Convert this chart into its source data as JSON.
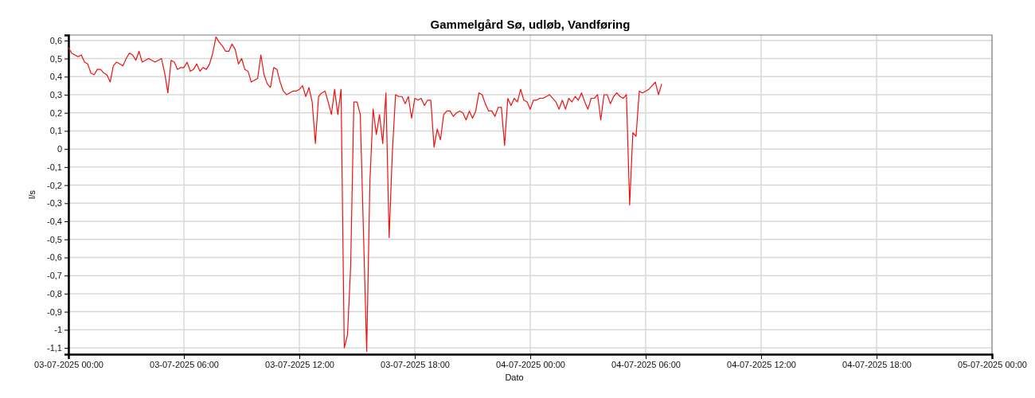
{
  "chart_data": {
    "type": "line",
    "title": "Gammelgård Sø, udløb, Vandføring",
    "xlabel": "Dato",
    "ylabel": "l/s",
    "x": [
      "2025-07-03T00:00",
      "2025-07-03T00:10",
      "2025-07-03T00:20",
      "2025-07-03T00:30",
      "2025-07-03T00:40",
      "2025-07-03T00:50",
      "2025-07-03T01:00",
      "2025-07-03T01:10",
      "2025-07-03T01:20",
      "2025-07-03T01:30",
      "2025-07-03T01:40",
      "2025-07-03T01:50",
      "2025-07-03T02:00",
      "2025-07-03T02:10",
      "2025-07-03T02:20",
      "2025-07-03T02:30",
      "2025-07-03T02:40",
      "2025-07-03T02:50",
      "2025-07-03T03:00",
      "2025-07-03T03:10",
      "2025-07-03T03:20",
      "2025-07-03T03:30",
      "2025-07-03T03:40",
      "2025-07-03T03:50",
      "2025-07-03T04:00",
      "2025-07-03T04:10",
      "2025-07-03T04:20",
      "2025-07-03T04:30",
      "2025-07-03T04:40",
      "2025-07-03T04:50",
      "2025-07-03T05:00",
      "2025-07-03T05:10",
      "2025-07-03T05:20",
      "2025-07-03T05:30",
      "2025-07-03T05:40",
      "2025-07-03T05:50",
      "2025-07-03T06:00",
      "2025-07-03T06:10",
      "2025-07-03T06:20",
      "2025-07-03T06:30",
      "2025-07-03T06:40",
      "2025-07-03T06:50",
      "2025-07-03T07:00",
      "2025-07-03T07:10",
      "2025-07-03T07:20",
      "2025-07-03T07:30",
      "2025-07-03T07:40",
      "2025-07-03T07:50",
      "2025-07-03T08:00",
      "2025-07-03T08:10",
      "2025-07-03T08:20",
      "2025-07-03T08:30",
      "2025-07-03T08:40",
      "2025-07-03T08:50",
      "2025-07-03T09:00",
      "2025-07-03T09:10",
      "2025-07-03T09:20",
      "2025-07-03T09:30",
      "2025-07-03T09:40",
      "2025-07-03T09:50",
      "2025-07-03T10:00",
      "2025-07-03T10:10",
      "2025-07-03T10:20",
      "2025-07-03T10:30",
      "2025-07-03T10:40",
      "2025-07-03T10:50",
      "2025-07-03T11:00",
      "2025-07-03T11:10",
      "2025-07-03T11:20",
      "2025-07-03T11:30",
      "2025-07-03T11:40",
      "2025-07-03T11:50",
      "2025-07-03T12:00",
      "2025-07-03T12:10",
      "2025-07-03T12:20",
      "2025-07-03T12:30",
      "2025-07-03T12:40",
      "2025-07-03T12:50",
      "2025-07-03T13:00",
      "2025-07-03T13:10",
      "2025-07-03T13:20",
      "2025-07-03T13:30",
      "2025-07-03T13:40",
      "2025-07-03T13:50",
      "2025-07-03T14:00",
      "2025-07-03T14:10",
      "2025-07-03T14:20",
      "2025-07-03T14:30",
      "2025-07-03T14:40",
      "2025-07-03T14:50",
      "2025-07-03T15:00",
      "2025-07-03T15:10",
      "2025-07-03T15:30",
      "2025-07-03T15:40",
      "2025-07-03T15:50",
      "2025-07-03T16:00",
      "2025-07-03T16:10",
      "2025-07-03T16:20",
      "2025-07-03T16:30",
      "2025-07-03T16:40",
      "2025-07-03T16:50",
      "2025-07-03T17:00",
      "2025-07-03T17:10",
      "2025-07-03T17:20",
      "2025-07-03T17:30",
      "2025-07-03T17:40",
      "2025-07-03T17:50",
      "2025-07-03T18:00",
      "2025-07-03T18:10",
      "2025-07-03T18:20",
      "2025-07-03T18:30",
      "2025-07-03T18:40",
      "2025-07-03T18:50",
      "2025-07-03T19:00",
      "2025-07-03T19:10",
      "2025-07-03T19:20",
      "2025-07-03T19:30",
      "2025-07-03T19:40",
      "2025-07-03T19:50",
      "2025-07-03T20:00",
      "2025-07-03T20:10",
      "2025-07-03T20:20",
      "2025-07-03T20:30",
      "2025-07-03T20:40",
      "2025-07-03T20:50",
      "2025-07-03T21:00",
      "2025-07-03T21:10",
      "2025-07-03T21:20",
      "2025-07-03T21:30",
      "2025-07-03T21:40",
      "2025-07-03T21:50",
      "2025-07-03T22:00",
      "2025-07-03T22:10",
      "2025-07-03T22:20",
      "2025-07-03T22:30",
      "2025-07-03T22:40",
      "2025-07-03T22:50",
      "2025-07-03T23:00",
      "2025-07-03T23:10",
      "2025-07-03T23:20",
      "2025-07-03T23:30",
      "2025-07-03T23:40",
      "2025-07-03T23:50",
      "2025-07-04T00:00",
      "2025-07-04T00:10",
      "2025-07-04T00:20",
      "2025-07-04T00:30",
      "2025-07-04T00:40",
      "2025-07-04T00:50",
      "2025-07-04T01:00",
      "2025-07-04T01:20",
      "2025-07-04T01:30",
      "2025-07-04T01:40",
      "2025-07-04T01:50",
      "2025-07-04T02:00",
      "2025-07-04T02:10",
      "2025-07-04T02:20",
      "2025-07-04T02:30",
      "2025-07-04T02:40",
      "2025-07-04T02:50",
      "2025-07-04T03:00",
      "2025-07-04T03:10",
      "2025-07-04T03:20",
      "2025-07-04T03:30",
      "2025-07-04T03:40",
      "2025-07-04T03:50",
      "2025-07-04T04:00",
      "2025-07-04T04:10",
      "2025-07-04T04:20",
      "2025-07-04T04:30",
      "2025-07-04T04:40",
      "2025-07-04T04:50",
      "2025-07-04T05:00",
      "2025-07-04T05:10",
      "2025-07-04T05:20",
      "2025-07-04T05:30",
      "2025-07-04T05:40",
      "2025-07-04T05:50",
      "2025-07-04T06:00",
      "2025-07-04T06:10",
      "2025-07-04T06:20",
      "2025-07-04T06:30",
      "2025-07-04T06:40",
      "2025-07-04T06:50"
    ],
    "series": [
      {
        "color": "#ee1111",
        "values": [
          0.56,
          0.53,
          0.52,
          0.51,
          0.52,
          0.48,
          0.47,
          0.42,
          0.41,
          0.44,
          0.44,
          0.42,
          0.41,
          0.37,
          0.46,
          0.48,
          0.47,
          0.46,
          0.5,
          0.53,
          0.52,
          0.49,
          0.54,
          0.48,
          0.49,
          0.5,
          0.49,
          0.48,
          0.49,
          0.5,
          0.42,
          0.31,
          0.49,
          0.48,
          0.44,
          0.45,
          0.45,
          0.48,
          0.43,
          0.44,
          0.47,
          0.43,
          0.45,
          0.44,
          0.47,
          0.53,
          0.62,
          0.59,
          0.57,
          0.54,
          0.54,
          0.58,
          0.55,
          0.47,
          0.5,
          0.44,
          0.43,
          0.37,
          0.38,
          0.39,
          0.52,
          0.41,
          0.36,
          0.34,
          0.45,
          0.44,
          0.37,
          0.32,
          0.3,
          0.31,
          0.32,
          0.32,
          0.33,
          0.35,
          0.29,
          0.34,
          0.26,
          0.03,
          0.29,
          0.31,
          0.32,
          0.26,
          0.19,
          0.33,
          0.19,
          0.33,
          -1.1,
          -1.03,
          -0.65,
          0.26,
          0.26,
          0.19,
          -1.12,
          -0.18,
          0.22,
          0.08,
          0.19,
          0.03,
          0.31,
          -0.49,
          -0.02,
          0.3,
          0.29,
          0.29,
          0.25,
          0.29,
          0.17,
          0.28,
          0.27,
          0.28,
          0.24,
          0.27,
          0.27,
          0.01,
          0.11,
          0.05,
          0.19,
          0.21,
          0.21,
          0.18,
          0.2,
          0.21,
          0.2,
          0.16,
          0.21,
          0.17,
          0.21,
          0.31,
          0.3,
          0.25,
          0.21,
          0.21,
          0.18,
          0.23,
          0.23,
          0.02,
          0.28,
          0.24,
          0.28,
          0.26,
          0.33,
          0.27,
          0.26,
          0.22,
          0.27,
          0.27,
          0.28,
          0.28,
          0.29,
          0.3,
          0.26,
          0.22,
          0.27,
          0.22,
          0.28,
          0.26,
          0.29,
          0.27,
          0.31,
          0.26,
          0.22,
          0.28,
          0.28,
          0.3,
          0.16,
          0.3,
          0.3,
          0.25,
          0.29,
          0.31,
          0.29,
          0.28,
          0.3,
          -0.31,
          0.09,
          0.07,
          0.32,
          0.31,
          0.32,
          0.33,
          0.35,
          0.37,
          0.3,
          0.36
        ]
      }
    ],
    "xlim": [
      "2025-07-03T00:00",
      "2025-07-05T00:00"
    ],
    "xticks": [
      {
        "value": "2025-07-03T00:00",
        "label": "03-07-2025 00:00"
      },
      {
        "value": "2025-07-03T06:00",
        "label": "03-07-2025 06:00"
      },
      {
        "value": "2025-07-03T12:00",
        "label": "03-07-2025 12:00"
      },
      {
        "value": "2025-07-03T18:00",
        "label": "03-07-2025 18:00"
      },
      {
        "value": "2025-07-04T00:00",
        "label": "04-07-2025 00:00"
      },
      {
        "value": "2025-07-04T06:00",
        "label": "04-07-2025 06:00"
      },
      {
        "value": "2025-07-04T12:00",
        "label": "04-07-2025 12:00"
      },
      {
        "value": "2025-07-04T18:00",
        "label": "04-07-2025 18:00"
      },
      {
        "value": "2025-07-05T00:00",
        "label": "05-07-2025 00:00"
      }
    ],
    "ylim": [
      -1.135,
      0.63
    ],
    "yticks": [
      {
        "value": 0.6,
        "label": "0,6"
      },
      {
        "value": 0.5,
        "label": "0,5"
      },
      {
        "value": 0.4,
        "label": "0,4"
      },
      {
        "value": 0.3,
        "label": "0,3"
      },
      {
        "value": 0.2,
        "label": "0,2"
      },
      {
        "value": 0.1,
        "label": "0,1"
      },
      0,
      {
        "value": -0.1,
        "label": "-0,1"
      },
      {
        "value": -0.2,
        "label": "-0,2"
      },
      {
        "value": -0.3,
        "label": "-0,3"
      },
      {
        "value": -0.4,
        "label": "-0,4"
      },
      {
        "value": -0.5,
        "label": "-0,5"
      },
      {
        "value": -0.6,
        "label": "-0,6"
      },
      {
        "value": -0.7,
        "label": "-0,7"
      },
      {
        "value": -0.8,
        "label": "-0,8"
      },
      {
        "value": -0.9,
        "label": "-0,9"
      },
      -1,
      {
        "value": -1.1,
        "label": "-1,1"
      }
    ],
    "grid": true,
    "marker": "none",
    "line_style": "solid"
  }
}
